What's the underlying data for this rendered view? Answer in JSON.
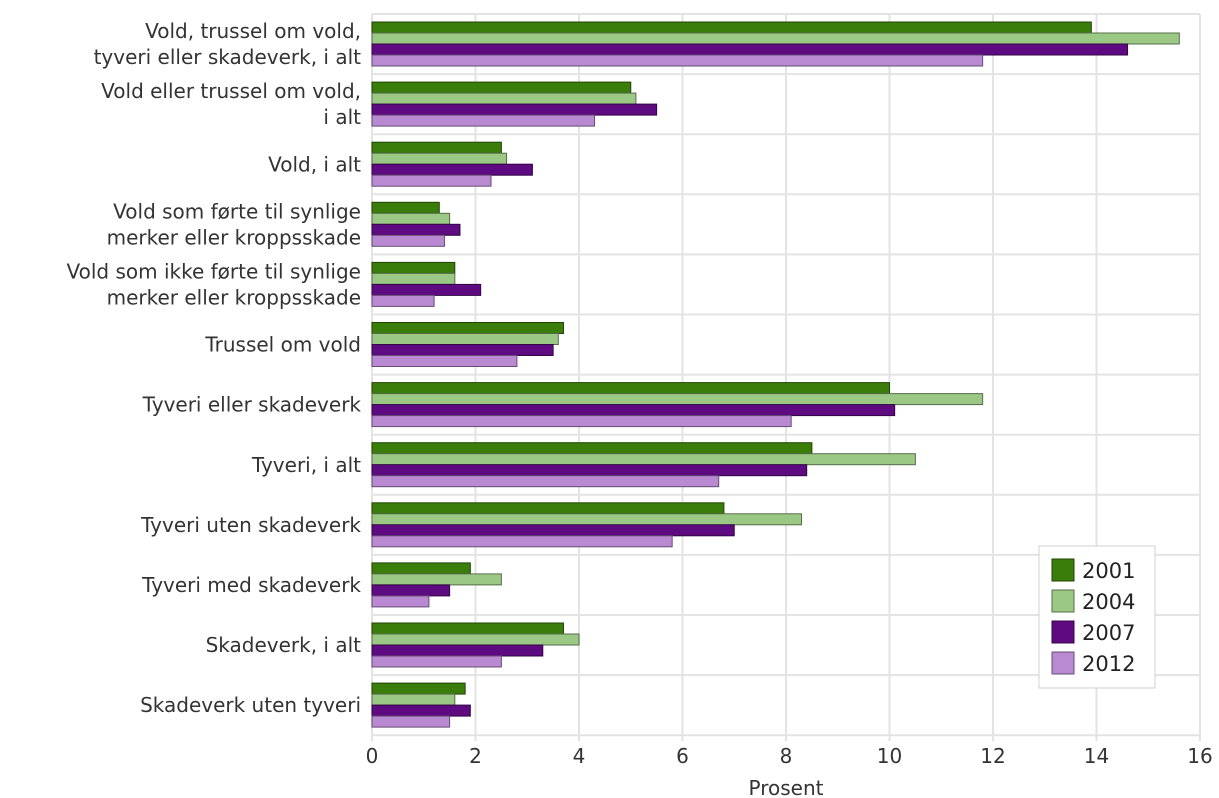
{
  "chart_data": {
    "type": "bar",
    "orientation": "horizontal",
    "categories": [
      [
        "Vold, trussel om vold,",
        "tyveri eller skadeverk, i alt"
      ],
      [
        "Vold eller trussel om vold,",
        "i alt"
      ],
      [
        "Vold, i alt"
      ],
      [
        "Vold som førte til synlige",
        "merker eller kroppsskade"
      ],
      [
        "Vold som ikke førte til synlige",
        "merker eller kroppsskade"
      ],
      [
        "Trussel om vold"
      ],
      [
        "Tyveri eller skadeverk"
      ],
      [
        "Tyveri, i alt"
      ],
      [
        "Tyveri uten skadeverk"
      ],
      [
        "Tyveri med skadeverk"
      ],
      [
        "Skadeverk, i alt"
      ],
      [
        "Skadeverk uten tyveri"
      ]
    ],
    "series": [
      {
        "name": "2001",
        "color": "#3a7d0a",
        "values": [
          13.9,
          5.0,
          2.5,
          1.3,
          1.6,
          3.7,
          10.0,
          8.5,
          6.8,
          1.9,
          3.7,
          1.8
        ]
      },
      {
        "name": "2004",
        "color": "#9bc885",
        "values": [
          15.6,
          5.1,
          2.6,
          1.5,
          1.6,
          3.6,
          11.8,
          10.5,
          8.3,
          2.5,
          4.0,
          1.6
        ]
      },
      {
        "name": "2007",
        "color": "#5e0a80",
        "values": [
          14.6,
          5.5,
          3.1,
          1.7,
          2.1,
          3.5,
          10.1,
          8.4,
          7.0,
          1.5,
          3.3,
          1.9
        ]
      },
      {
        "name": "2012",
        "color": "#b98ad2",
        "values": [
          11.8,
          4.3,
          2.3,
          1.4,
          1.2,
          2.8,
          8.1,
          6.7,
          5.8,
          1.1,
          2.5,
          1.5
        ]
      }
    ],
    "xlabel": "Prosent",
    "xlim": [
      0,
      16
    ],
    "xticks": [
      "0",
      "2",
      "4",
      "6",
      "8",
      "10",
      "12",
      "14",
      "16"
    ],
    "grid": true,
    "legend_position": "bottom-right"
  }
}
